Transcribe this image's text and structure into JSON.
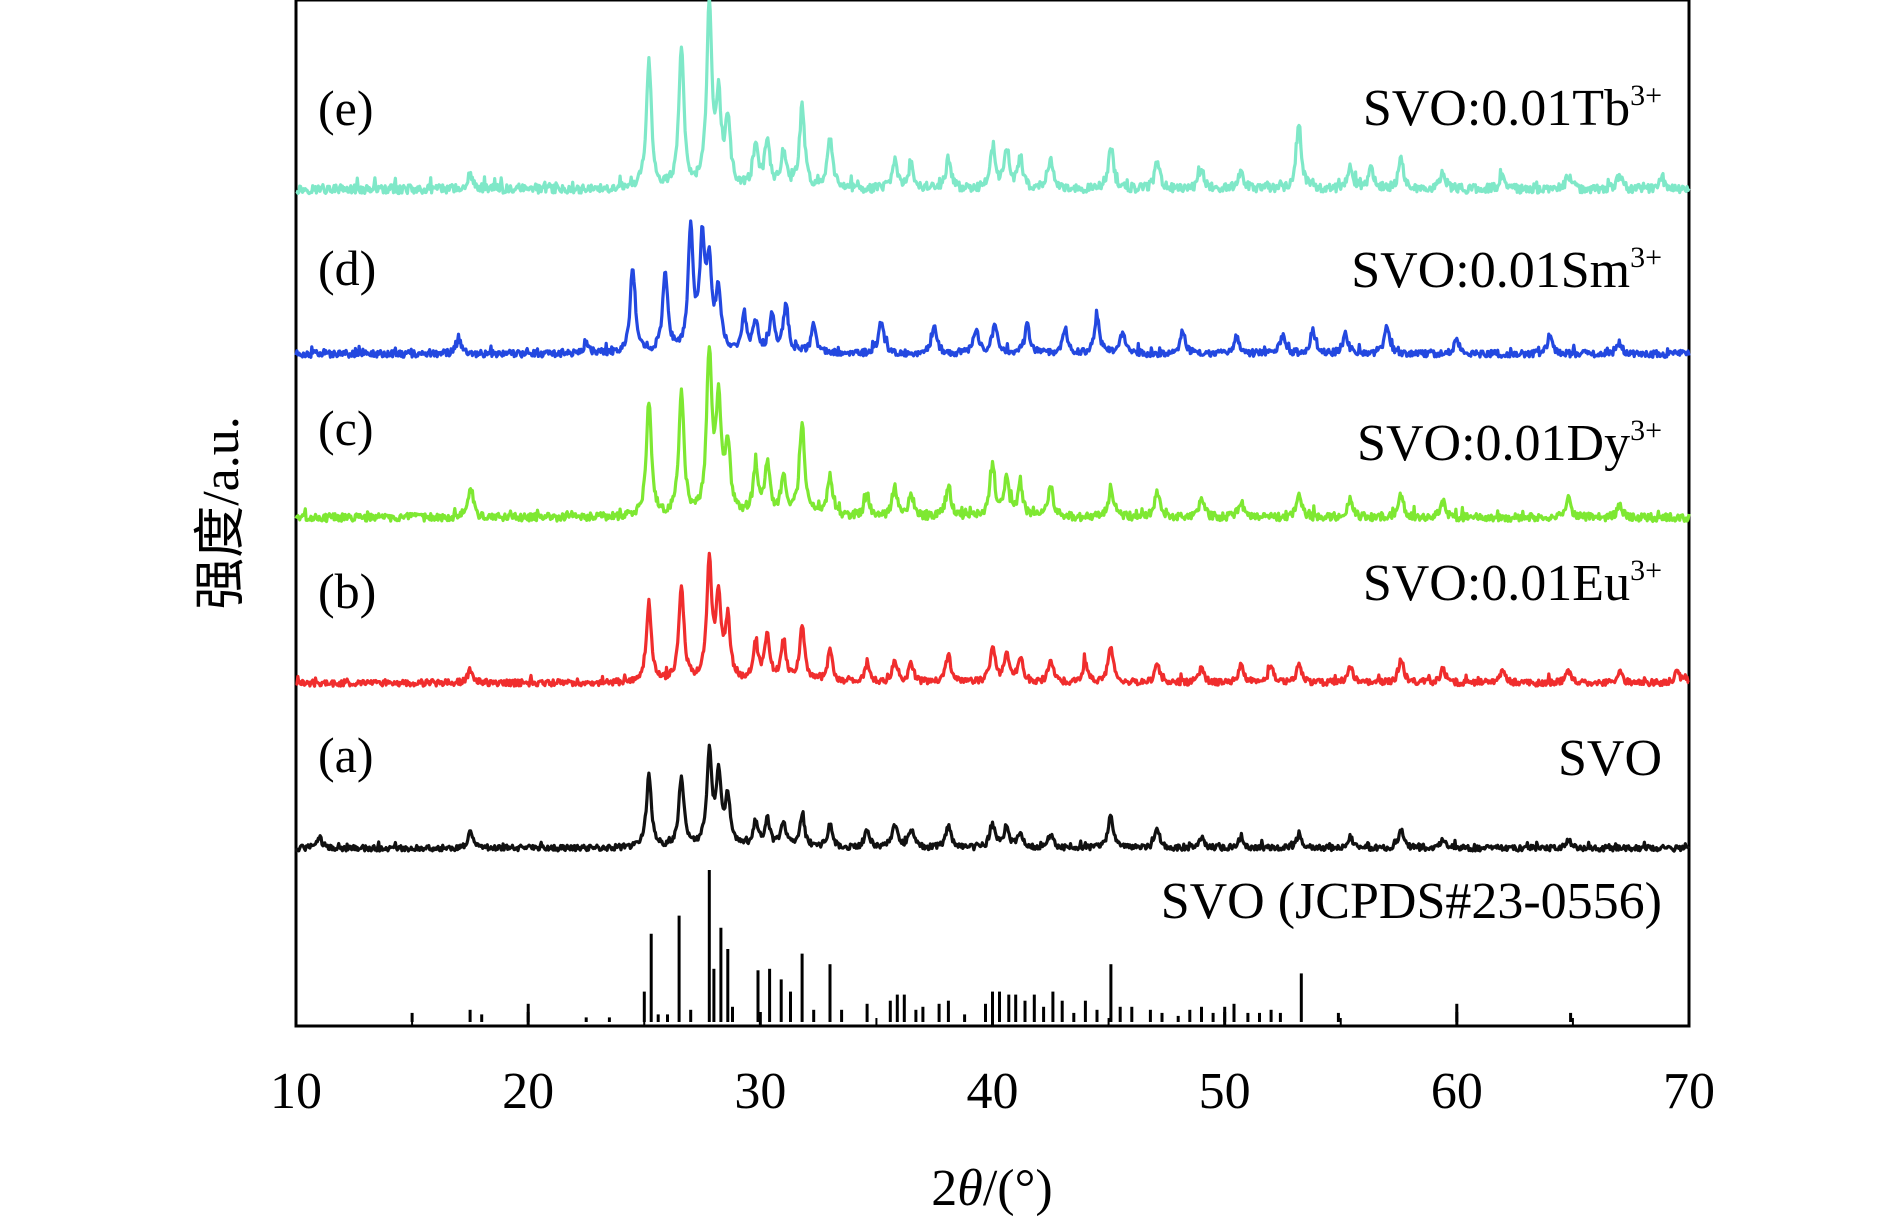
{
  "chart_data": {
    "type": "line",
    "title": "",
    "xlabel": "2θ/(°)",
    "xlabel_parts": {
      "var": "2",
      "theta": "θ",
      "rest": "/(°)"
    },
    "ylabel": "强度/a.u.",
    "xlim": [
      10,
      70
    ],
    "xticks": [
      10,
      20,
      30,
      40,
      50,
      60,
      70
    ],
    "yticks": [],
    "grid": false,
    "series": [
      {
        "letter": "(e)",
        "name": "SVO:0.01Tb",
        "sup": "3+",
        "color": "#7fe8c8",
        "peaks": [
          [
            17.5,
            0.09
          ],
          [
            25.2,
            0.72
          ],
          [
            26.6,
            0.78
          ],
          [
            27.8,
            1.0
          ],
          [
            28.2,
            0.46
          ],
          [
            28.6,
            0.36
          ],
          [
            29.8,
            0.24
          ],
          [
            30.3,
            0.26
          ],
          [
            31.0,
            0.2
          ],
          [
            31.8,
            0.46
          ],
          [
            33.0,
            0.28
          ],
          [
            35.8,
            0.16
          ],
          [
            36.5,
            0.12
          ],
          [
            38.1,
            0.17
          ],
          [
            40.0,
            0.22
          ],
          [
            40.6,
            0.2
          ],
          [
            41.2,
            0.17
          ],
          [
            42.5,
            0.16
          ],
          [
            45.1,
            0.24
          ],
          [
            47.1,
            0.16
          ],
          [
            49.0,
            0.12
          ],
          [
            50.7,
            0.1
          ],
          [
            53.2,
            0.36
          ],
          [
            55.4,
            0.14
          ],
          [
            56.3,
            0.12
          ],
          [
            57.6,
            0.17
          ],
          [
            59.4,
            0.1
          ],
          [
            62.0,
            0.08
          ],
          [
            64.8,
            0.08
          ],
          [
            67.0,
            0.08
          ],
          [
            68.8,
            0.07
          ]
        ]
      },
      {
        "letter": "(d)",
        "name": "SVO:0.01Sm",
        "sup": "3+",
        "color": "#2348e0",
        "peaks": [
          [
            17.0,
            0.1
          ],
          [
            22.5,
            0.08
          ],
          [
            24.5,
            0.6
          ],
          [
            25.9,
            0.58
          ],
          [
            27.0,
            0.88
          ],
          [
            27.5,
            0.74
          ],
          [
            27.8,
            0.58
          ],
          [
            28.2,
            0.42
          ],
          [
            29.3,
            0.25
          ],
          [
            29.8,
            0.22
          ],
          [
            30.5,
            0.26
          ],
          [
            31.1,
            0.34
          ],
          [
            32.3,
            0.2
          ],
          [
            35.2,
            0.24
          ],
          [
            37.5,
            0.2
          ],
          [
            39.3,
            0.18
          ],
          [
            40.1,
            0.22
          ],
          [
            41.5,
            0.2
          ],
          [
            43.1,
            0.16
          ],
          [
            44.5,
            0.26
          ],
          [
            45.6,
            0.15
          ],
          [
            48.2,
            0.16
          ],
          [
            50.5,
            0.12
          ],
          [
            52.5,
            0.13
          ],
          [
            53.8,
            0.16
          ],
          [
            55.2,
            0.14
          ],
          [
            57.0,
            0.2
          ],
          [
            60.0,
            0.1
          ],
          [
            64.0,
            0.12
          ],
          [
            67.0,
            0.08
          ]
        ]
      },
      {
        "letter": "(c)",
        "name": "SVO:0.01Dy",
        "sup": "3+",
        "color": "#7ee832",
        "peaks": [
          [
            17.5,
            0.18
          ],
          [
            25.2,
            0.72
          ],
          [
            26.6,
            0.78
          ],
          [
            27.8,
            1.0
          ],
          [
            28.2,
            0.7
          ],
          [
            28.6,
            0.42
          ],
          [
            29.8,
            0.3
          ],
          [
            30.3,
            0.32
          ],
          [
            31.0,
            0.26
          ],
          [
            31.8,
            0.58
          ],
          [
            33.0,
            0.26
          ],
          [
            34.6,
            0.14
          ],
          [
            35.8,
            0.18
          ],
          [
            36.5,
            0.14
          ],
          [
            38.1,
            0.2
          ],
          [
            40.0,
            0.32
          ],
          [
            40.6,
            0.24
          ],
          [
            41.2,
            0.2
          ],
          [
            42.5,
            0.2
          ],
          [
            45.1,
            0.18
          ],
          [
            47.1,
            0.16
          ],
          [
            49.0,
            0.12
          ],
          [
            50.7,
            0.1
          ],
          [
            53.2,
            0.16
          ],
          [
            55.4,
            0.12
          ],
          [
            57.6,
            0.14
          ],
          [
            59.4,
            0.1
          ],
          [
            64.8,
            0.12
          ],
          [
            67.0,
            0.08
          ]
        ]
      },
      {
        "letter": "(b)",
        "name": "SVO:0.01Eu",
        "sup": "3+",
        "color": "#f02d2d",
        "peaks": [
          [
            17.5,
            0.1
          ],
          [
            25.2,
            0.62
          ],
          [
            26.6,
            0.74
          ],
          [
            27.8,
            0.92
          ],
          [
            28.2,
            0.62
          ],
          [
            28.6,
            0.46
          ],
          [
            29.8,
            0.28
          ],
          [
            30.3,
            0.36
          ],
          [
            31.0,
            0.3
          ],
          [
            31.8,
            0.42
          ],
          [
            33.0,
            0.24
          ],
          [
            34.6,
            0.14
          ],
          [
            35.8,
            0.16
          ],
          [
            36.5,
            0.14
          ],
          [
            38.1,
            0.22
          ],
          [
            40.0,
            0.26
          ],
          [
            40.6,
            0.22
          ],
          [
            41.2,
            0.2
          ],
          [
            42.5,
            0.16
          ],
          [
            44.0,
            0.16
          ],
          [
            45.1,
            0.28
          ],
          [
            47.1,
            0.14
          ],
          [
            49.0,
            0.12
          ],
          [
            50.7,
            0.13
          ],
          [
            52.0,
            0.12
          ],
          [
            53.2,
            0.14
          ],
          [
            55.4,
            0.14
          ],
          [
            57.6,
            0.18
          ],
          [
            59.4,
            0.12
          ],
          [
            62.0,
            0.1
          ],
          [
            64.8,
            0.1
          ],
          [
            67.0,
            0.09
          ],
          [
            69.5,
            0.1
          ]
        ]
      },
      {
        "letter": "(a)",
        "name": "SVO",
        "sup": "",
        "color": "#111111",
        "peaks": [
          [
            11.0,
            0.1
          ],
          [
            17.5,
            0.14
          ],
          [
            25.2,
            0.62
          ],
          [
            26.6,
            0.62
          ],
          [
            27.8,
            0.8
          ],
          [
            28.2,
            0.6
          ],
          [
            28.6,
            0.42
          ],
          [
            29.8,
            0.22
          ],
          [
            30.3,
            0.24
          ],
          [
            31.0,
            0.22
          ],
          [
            31.8,
            0.28
          ],
          [
            33.0,
            0.2
          ],
          [
            34.6,
            0.16
          ],
          [
            35.8,
            0.2
          ],
          [
            36.5,
            0.16
          ],
          [
            38.1,
            0.2
          ],
          [
            40.0,
            0.2
          ],
          [
            40.6,
            0.18
          ],
          [
            41.2,
            0.14
          ],
          [
            42.5,
            0.12
          ],
          [
            45.1,
            0.28
          ],
          [
            47.1,
            0.16
          ],
          [
            49.0,
            0.1
          ],
          [
            50.7,
            0.1
          ],
          [
            53.2,
            0.12
          ],
          [
            55.4,
            0.1
          ],
          [
            57.6,
            0.16
          ],
          [
            59.4,
            0.08
          ],
          [
            64.8,
            0.08
          ]
        ]
      }
    ],
    "reference": {
      "name": "SVO (JCPDS#23-0556)",
      "color": "#000000",
      "peaks": [
        [
          15.0,
          0.06
        ],
        [
          17.5,
          0.08
        ],
        [
          18.0,
          0.05
        ],
        [
          20.0,
          0.12
        ],
        [
          22.5,
          0.03
        ],
        [
          23.5,
          0.03
        ],
        [
          25.0,
          0.2
        ],
        [
          25.3,
          0.58
        ],
        [
          25.6,
          0.05
        ],
        [
          26.0,
          0.05
        ],
        [
          26.5,
          0.7
        ],
        [
          27.0,
          0.08
        ],
        [
          27.8,
          1.0
        ],
        [
          28.0,
          0.35
        ],
        [
          28.3,
          0.62
        ],
        [
          28.6,
          0.48
        ],
        [
          28.8,
          0.1
        ],
        [
          29.9,
          0.34
        ],
        [
          30.4,
          0.35
        ],
        [
          30.9,
          0.28
        ],
        [
          31.3,
          0.2
        ],
        [
          31.8,
          0.45
        ],
        [
          32.3,
          0.08
        ],
        [
          33.0,
          0.38
        ],
        [
          33.5,
          0.08
        ],
        [
          34.6,
          0.12
        ],
        [
          35.6,
          0.14
        ],
        [
          35.9,
          0.18
        ],
        [
          36.2,
          0.18
        ],
        [
          36.7,
          0.08
        ],
        [
          37.0,
          0.1
        ],
        [
          37.7,
          0.12
        ],
        [
          38.1,
          0.14
        ],
        [
          38.8,
          0.05
        ],
        [
          39.7,
          0.12
        ],
        [
          40.0,
          0.2
        ],
        [
          40.3,
          0.2
        ],
        [
          40.7,
          0.18
        ],
        [
          41.0,
          0.18
        ],
        [
          41.4,
          0.14
        ],
        [
          41.8,
          0.18
        ],
        [
          42.2,
          0.1
        ],
        [
          42.6,
          0.2
        ],
        [
          43.0,
          0.14
        ],
        [
          43.5,
          0.06
        ],
        [
          44.0,
          0.14
        ],
        [
          44.5,
          0.08
        ],
        [
          45.1,
          0.38
        ],
        [
          45.5,
          0.1
        ],
        [
          46.0,
          0.1
        ],
        [
          46.8,
          0.08
        ],
        [
          47.3,
          0.06
        ],
        [
          48.0,
          0.04
        ],
        [
          48.5,
          0.08
        ],
        [
          49.0,
          0.1
        ],
        [
          49.5,
          0.06
        ],
        [
          50.0,
          0.1
        ],
        [
          50.4,
          0.12
        ],
        [
          51.0,
          0.06
        ],
        [
          51.5,
          0.06
        ],
        [
          52.0,
          0.08
        ],
        [
          52.4,
          0.06
        ],
        [
          53.3,
          0.32
        ],
        [
          54.9,
          0.06
        ],
        [
          60.0,
          0.12
        ],
        [
          64.9,
          0.06
        ]
      ]
    }
  }
}
